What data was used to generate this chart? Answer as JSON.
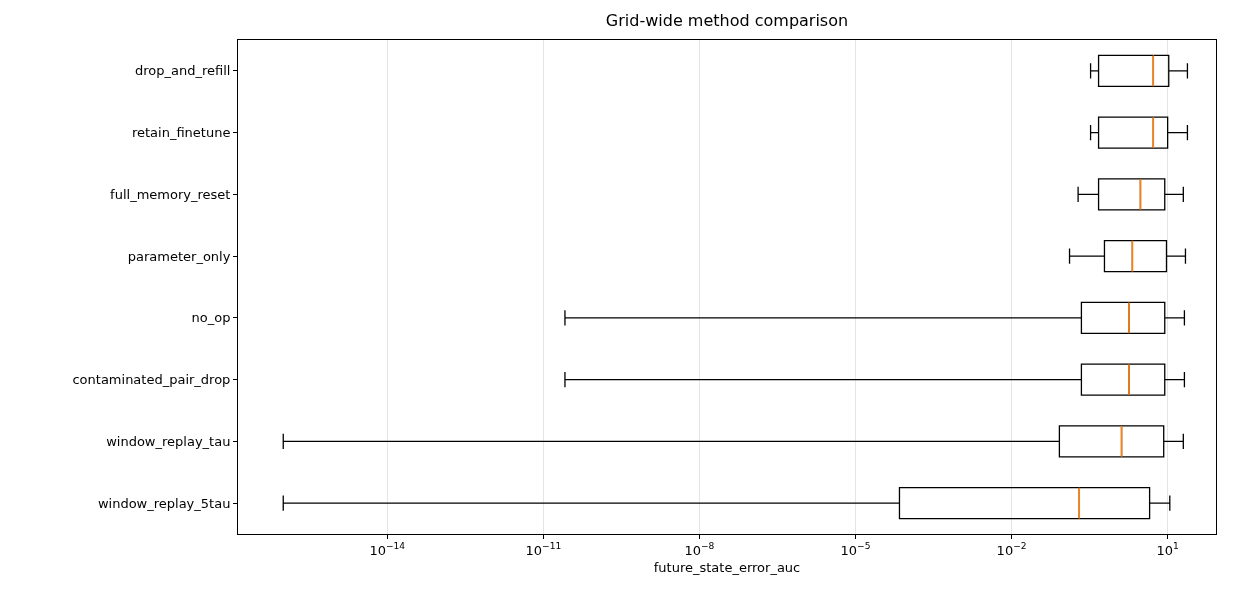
{
  "chart_data": {
    "type": "box",
    "title": "Grid-wide method comparison",
    "xlabel": "future_state_error_auc",
    "orientation": "horizontal",
    "log": "x",
    "grid": "x",
    "categories": [
      "drop_and_refill",
      "retain_finetune",
      "full_memory_reset",
      "parameter_only",
      "no_op",
      "contaminated_pair_drop",
      "window_replay_tau",
      "window_replay_5tau"
    ],
    "boxes": [
      {
        "low": 0.33,
        "q1": 0.47,
        "median": 5.3,
        "q3": 10.5,
        "high": 24
      },
      {
        "low": 0.33,
        "q1": 0.47,
        "median": 5.3,
        "q3": 10,
        "high": 24
      },
      {
        "low": 0.19,
        "q1": 0.47,
        "median": 3,
        "q3": 8.8,
        "high": 20
      },
      {
        "low": 0.13,
        "q1": 0.61,
        "median": 2.1,
        "q3": 9.5,
        "high": 22
      },
      {
        "low": 2.6e-11,
        "q1": 0.22,
        "median": 1.8,
        "q3": 8.8,
        "high": 21
      },
      {
        "low": 2.6e-11,
        "q1": 0.22,
        "median": 1.8,
        "q3": 8.8,
        "high": 21
      },
      {
        "low": 1e-16,
        "q1": 0.083,
        "median": 1.3,
        "q3": 8.4,
        "high": 20
      },
      {
        "low": 1e-16,
        "q1": 7e-05,
        "median": 0.2,
        "q3": 4.5,
        "high": 11
      }
    ],
    "xlim": [
      1.35e-17,
      85
    ],
    "xticks": [
      {
        "value": 1e-14,
        "label": "10$^{−14}$"
      },
      {
        "value": 1e-11,
        "label": "10$^{−11}$"
      },
      {
        "value": 1e-08,
        "label": "10$^{−8}$"
      },
      {
        "value": 1e-05,
        "label": "10$^{−5}$"
      },
      {
        "value": 0.01,
        "label": "10$^{−2}$"
      },
      {
        "value": 10,
        "label": "10$^{1}$"
      }
    ]
  }
}
